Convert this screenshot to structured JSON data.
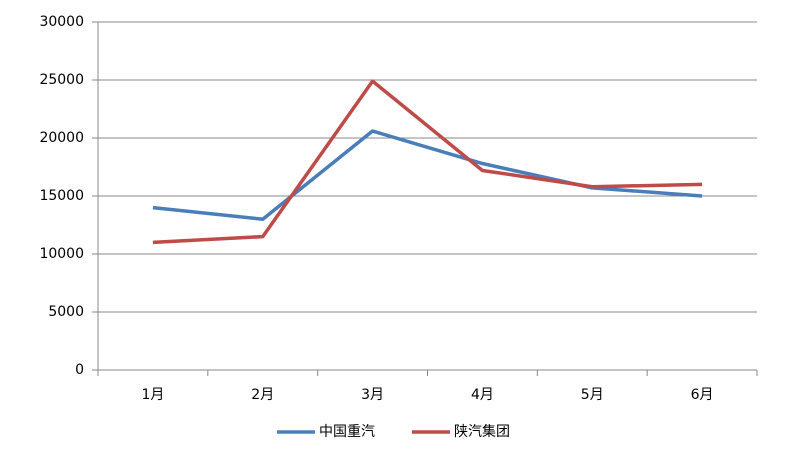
{
  "chart_data": {
    "type": "line",
    "categories": [
      "1月",
      "2月",
      "3月",
      "4月",
      "5月",
      "6月"
    ],
    "series": [
      {
        "name": "中国重汽",
        "color": "#4a7ebb",
        "values": [
          14000,
          13000,
          20600,
          17800,
          15700,
          15000
        ]
      },
      {
        "name": "陕汽集团",
        "color": "#be4b48",
        "values": [
          11000,
          11500,
          24900,
          17200,
          15800,
          16000
        ]
      }
    ],
    "ylim": [
      0,
      30000
    ],
    "yticks": [
      0,
      5000,
      10000,
      15000,
      20000,
      25000,
      30000
    ],
    "grid": true,
    "legend": "bottom"
  }
}
